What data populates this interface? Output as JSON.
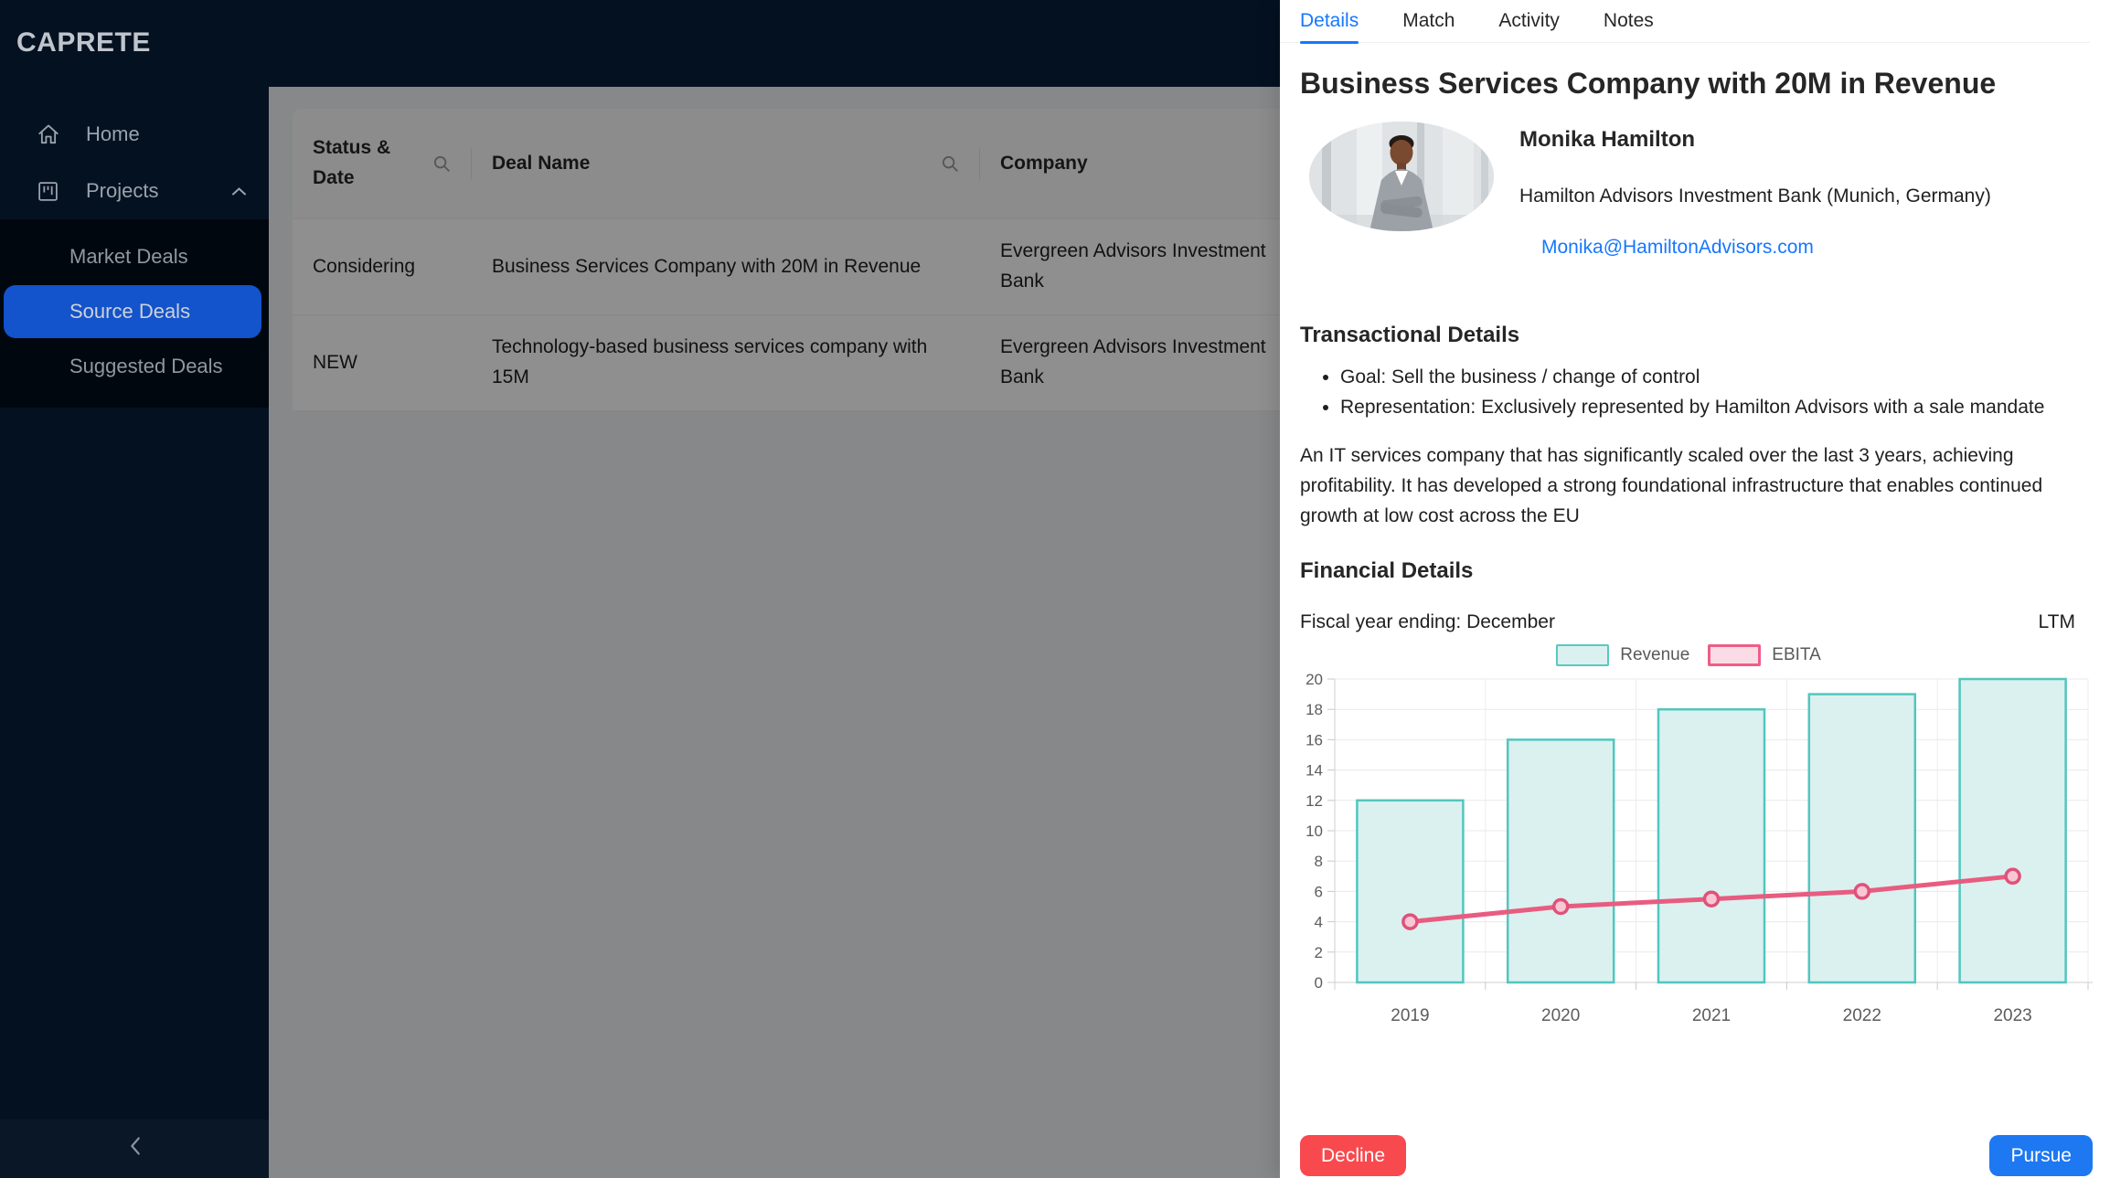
{
  "app": {
    "logo": "CAPRETE"
  },
  "sidebar": {
    "items": [
      {
        "label": "Home",
        "icon": "home-icon"
      },
      {
        "label": "Projects",
        "icon": "project-icon",
        "expanded": true,
        "children": [
          {
            "label": "Market Deals",
            "selected": false
          },
          {
            "label": "Source Deals",
            "selected": true
          },
          {
            "label": "Suggested Deals",
            "selected": false
          }
        ]
      }
    ]
  },
  "table": {
    "columns": {
      "status": "Status & Date",
      "deal": "Deal Name",
      "company": "Company"
    },
    "rows": [
      {
        "status": "Considering",
        "deal_name": "Business Services Company with 20M in Revenue",
        "company": "Evergreen Advisors Investment Bank"
      },
      {
        "status": "NEW",
        "deal_name": "Technology-based business services company with 15M",
        "company": "Evergreen Advisors Investment Bank"
      }
    ]
  },
  "drawer": {
    "tabs": [
      {
        "label": "Details",
        "active": true
      },
      {
        "label": "Match",
        "active": false
      },
      {
        "label": "Activity",
        "active": false
      },
      {
        "label": "Notes",
        "active": false
      }
    ],
    "title": "Business Services Company with 20M in Revenue",
    "contact": {
      "name": "Monika Hamilton",
      "organization": "Hamilton Advisors Investment Bank (Munich, Germany)",
      "email": "Monika@HamiltonAdvisors.com"
    },
    "transactional": {
      "heading": "Transactional Details",
      "bullets": [
        "Goal: Sell the business / change of control",
        "Representation: Exclusively represented by Hamilton Advisors with a sale mandate"
      ],
      "description": "An IT services company that has significantly scaled over the last 3 years, achieving profitability. It has developed a strong foundational infrastructure that enables continued growth at low cost across the EU"
    },
    "financial": {
      "heading": "Financial Details",
      "fiscal_label": "Fiscal year ending: December",
      "period_label": "LTM"
    },
    "actions": {
      "decline": "Decline",
      "pursue": "Pursue"
    }
  },
  "chart_data": {
    "type": "bar+line",
    "categories": [
      "2019",
      "2020",
      "2021",
      "2022",
      "2023"
    ],
    "series": [
      {
        "name": "Revenue",
        "type": "bar",
        "values": [
          12,
          16,
          18,
          19,
          20
        ],
        "fill": "#daf1ef",
        "stroke": "#52c6be"
      },
      {
        "name": "EBITA",
        "type": "line",
        "values": [
          4,
          5,
          5.5,
          6,
          7
        ],
        "stroke": "#e85c80",
        "marker_fill": "#f8c7d3",
        "marker_stroke": "#e0517a"
      }
    ],
    "ylim": [
      0,
      20
    ],
    "ytick_step": 2,
    "yticks": [
      0,
      2,
      4,
      6,
      8,
      10,
      12,
      14,
      16,
      18,
      20
    ],
    "grid": true,
    "legend_position": "top"
  },
  "colors": {
    "sidebar_bg": "#041120",
    "submenu_bg": "#01070f",
    "selected_item": "#1353cb",
    "accent_blue": "#1677ff",
    "decline_red": "#f8494e",
    "pursue_blue": "#1d78f2",
    "revenue_fill": "#daf1ef",
    "revenue_stroke": "#52c6be",
    "ebita_pink": "#e85c80"
  }
}
